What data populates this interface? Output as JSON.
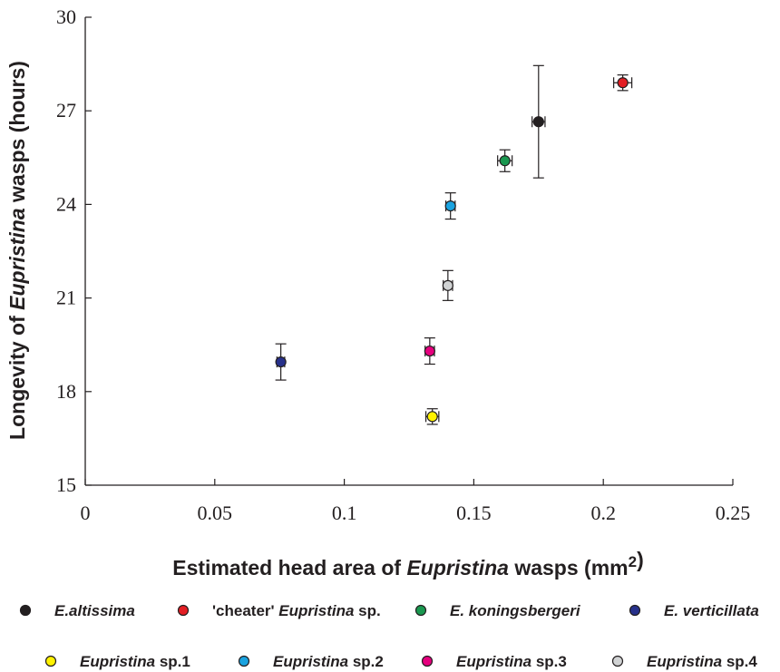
{
  "chart_data": {
    "type": "scatter",
    "xlabel_parts": [
      {
        "text": "Estimated head area of ",
        "italic": false
      },
      {
        "text": "Eupristina",
        "italic": true
      },
      {
        "text": " wasps (mm",
        "italic": false
      },
      {
        "text": "2",
        "italic": false,
        "sup": true
      },
      {
        "text": ")",
        "italic": false
      }
    ],
    "ylabel_parts": [
      {
        "text": "Longevity of ",
        "italic": false
      },
      {
        "text": "Eupristina",
        "italic": true
      },
      {
        "text": " wasps (hours)",
        "italic": false
      }
    ],
    "xlim": [
      0,
      0.25
    ],
    "ylim": [
      15,
      30
    ],
    "x_ticks": [
      "0",
      "0.05",
      "0.1",
      "0.15",
      "0.2",
      "0.25"
    ],
    "x_tick_values": [
      0,
      0.05,
      0.1,
      0.15,
      0.2,
      0.25
    ],
    "y_ticks": [
      "15",
      "18",
      "21",
      "24",
      "27",
      "30"
    ],
    "y_tick_values": [
      15,
      18,
      21,
      24,
      27,
      30
    ],
    "grid": false,
    "legend_position": "bottom",
    "series": [
      {
        "name": "E.altissima",
        "name_parts": [
          {
            "text": "E.altissima",
            "italic": true
          }
        ],
        "color": "#231f20",
        "x": 0.175,
        "y": 26.65,
        "xerr": 0.0025,
        "yerr": 1.8
      },
      {
        "name": "'cheater' Eupristina sp.",
        "name_parts": [
          {
            "text": "'cheater' ",
            "italic": false
          },
          {
            "text": "Eupristina",
            "italic": true
          },
          {
            "text": " sp.",
            "italic": false
          }
        ],
        "color": "#e31e24",
        "x": 0.2075,
        "y": 27.9,
        "xerr": 0.0035,
        "yerr": 0.25
      },
      {
        "name": "E. koningsbergeri",
        "name_parts": [
          {
            "text": "E. koningsbergeri",
            "italic": true
          }
        ],
        "color": "#1a9850",
        "x": 0.162,
        "y": 25.4,
        "xerr": 0.0028,
        "yerr": 0.35
      },
      {
        "name": "E. verticillata",
        "name_parts": [
          {
            "text": "E. verticillata",
            "italic": true
          }
        ],
        "color": "#27318b",
        "x": 0.0755,
        "y": 18.95,
        "xerr": 0.0015,
        "yerr": 0.58
      },
      {
        "name": "Eupristina sp.1",
        "name_parts": [
          {
            "text": "Eupristina",
            "italic": true
          },
          {
            "text": " sp.1",
            "italic": false
          }
        ],
        "color": "#fff200",
        "x": 0.134,
        "y": 17.2,
        "xerr": 0.0025,
        "yerr": 0.25
      },
      {
        "name": "Eupristina sp.2",
        "name_parts": [
          {
            "text": "Eupristina",
            "italic": true
          },
          {
            "text": " sp.2",
            "italic": false
          }
        ],
        "color": "#1aa3e0",
        "x": 0.141,
        "y": 23.95,
        "xerr": 0.0018,
        "yerr": 0.42
      },
      {
        "name": "Eupristina sp.3",
        "name_parts": [
          {
            "text": "Eupristina",
            "italic": true
          },
          {
            "text": " sp.3",
            "italic": false
          }
        ],
        "color": "#e6007e",
        "x": 0.133,
        "y": 19.3,
        "xerr": 0.0018,
        "yerr": 0.42
      },
      {
        "name": "Eupristina sp.4",
        "name_parts": [
          {
            "text": "Eupristina",
            "italic": true
          },
          {
            "text": " sp.4",
            "italic": false
          }
        ],
        "color": "#d1d3d4",
        "x": 0.14,
        "y": 21.4,
        "xerr": 0.0018,
        "yerr": 0.48
      }
    ]
  }
}
